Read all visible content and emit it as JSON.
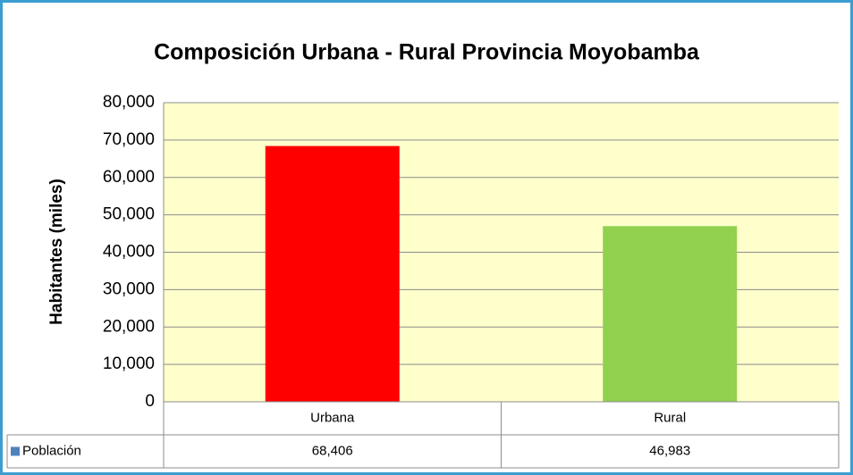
{
  "chart_data": {
    "type": "bar",
    "title": "Composición Urbana - Rural Provincia Moyobamba",
    "y_label": "Habitantes (miles)",
    "categories": [
      "Urbana",
      "Rural"
    ],
    "series": [
      {
        "name": "Población",
        "color": "#4f81bd",
        "colors": [
          "#ff0000",
          "#92d050"
        ],
        "values": [
          68406,
          46983
        ],
        "value_labels": [
          "68,406",
          "46,983"
        ]
      }
    ],
    "ylim": [
      0,
      80000
    ],
    "yticks": [
      0,
      {
        "value": 10000,
        "label": "10,000"
      },
      {
        "value": 20000,
        "label": "20,000"
      },
      {
        "value": 30000,
        "label": "30,000"
      },
      {
        "value": 40000,
        "label": "40,000"
      },
      {
        "value": 50000,
        "label": "50,000"
      },
      {
        "value": 60000,
        "label": "60,000"
      },
      {
        "value": 70000,
        "label": "70,000"
      },
      {
        "value": 80000,
        "label": "80,000"
      }
    ],
    "grid": true,
    "data_table": true
  }
}
